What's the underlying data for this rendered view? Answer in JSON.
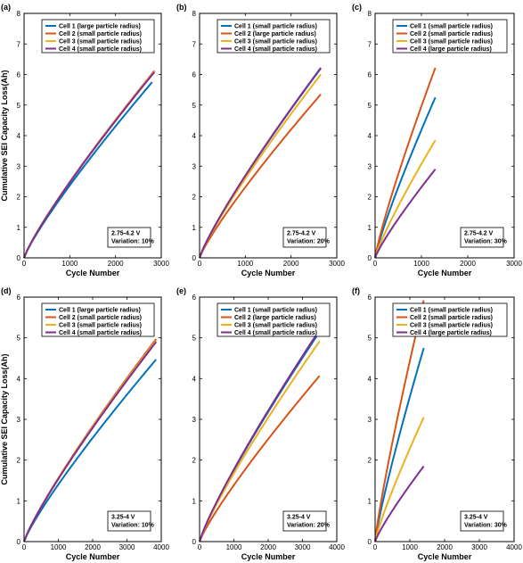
{
  "chart_data": [
    {
      "panel": "(a)",
      "type": "line",
      "xlabel": "Cycle Number",
      "ylabel": "Cumulative SEI Capacity Loss(Ah)",
      "xlim": [
        0,
        3000
      ],
      "ylim": [
        0,
        8
      ],
      "xticks": [
        0,
        1000,
        2000,
        3000
      ],
      "yticks": [
        0,
        1,
        2,
        3,
        4,
        5,
        6,
        7,
        8
      ],
      "legend_position": "top-right",
      "annotation": [
        "2.75-4.2 V",
        "Variation: 10%"
      ],
      "series": [
        {
          "name": "Cell 1 (large particle radius)",
          "color": "#0072BD",
          "x_end": 2800,
          "y_end": 5.75
        },
        {
          "name": "Cell 2 (small particle radius)",
          "color": "#D95319",
          "x_end": 2850,
          "y_end": 6.12
        },
        {
          "name": "Cell 3 (small particle radius)",
          "color": "#EDB120",
          "x_end": 2850,
          "y_end": 6.1
        },
        {
          "name": "Cell 4 (small particle radius)",
          "color": "#7E2F8E",
          "x_end": 2850,
          "y_end": 6.08
        }
      ]
    },
    {
      "panel": "(b)",
      "type": "line",
      "xlabel": "Cycle Number",
      "ylabel": "",
      "xlim": [
        0,
        3000
      ],
      "ylim": [
        0,
        8
      ],
      "xticks": [
        0,
        1000,
        2000,
        3000
      ],
      "yticks": [
        0,
        1,
        2,
        3,
        4,
        5,
        6,
        7,
        8
      ],
      "legend_position": "top-right",
      "annotation": [
        "2.75-4.2 V",
        "Variation: 20%"
      ],
      "series": [
        {
          "name": "Cell 1 (small particle radius)",
          "color": "#0072BD",
          "x_end": 2650,
          "y_end": 6.2
        },
        {
          "name": "Cell 2 (large particle radius)",
          "color": "#D95319",
          "x_end": 2650,
          "y_end": 5.35
        },
        {
          "name": "Cell 3 (small particle radius)",
          "color": "#EDB120",
          "x_end": 2650,
          "y_end": 6.0
        },
        {
          "name": "Cell 4 (small particle radius)",
          "color": "#7E2F8E",
          "x_end": 2650,
          "y_end": 6.22
        }
      ]
    },
    {
      "panel": "(c)",
      "type": "line",
      "xlabel": "Cycle Number",
      "ylabel": "",
      "xlim": [
        0,
        3000
      ],
      "ylim": [
        0,
        8
      ],
      "xticks": [
        0,
        1000,
        2000,
        3000
      ],
      "yticks": [
        0,
        1,
        2,
        3,
        4,
        5,
        6,
        7,
        8
      ],
      "legend_position": "top-right",
      "annotation": [
        "2.75-4.2 V",
        "Variation: 30%"
      ],
      "series": [
        {
          "name": "Cell 1 (small particle radius)",
          "color": "#0072BD",
          "x_end": 1300,
          "y_end": 5.25
        },
        {
          "name": "Cell 2 (small particle radius)",
          "color": "#D95319",
          "x_end": 1300,
          "y_end": 6.22
        },
        {
          "name": "Cell 3 (small particle radius)",
          "color": "#EDB120",
          "x_end": 1300,
          "y_end": 3.85
        },
        {
          "name": "Cell 4 (large particle radius)",
          "color": "#7E2F8E",
          "x_end": 1300,
          "y_end": 2.9
        }
      ]
    },
    {
      "panel": "(d)",
      "type": "line",
      "xlabel": "Cycle Number",
      "ylabel": "Cumulative SEI Capacity Loss(Ah)",
      "xlim": [
        0,
        4000
      ],
      "ylim": [
        0,
        6
      ],
      "xticks": [
        0,
        1000,
        2000,
        3000,
        4000
      ],
      "yticks": [
        0,
        1,
        2,
        3,
        4,
        5,
        6
      ],
      "legend_position": "top-right",
      "annotation": [
        "3.25-4 V",
        "Variation: 10%"
      ],
      "series": [
        {
          "name": "Cell 1 (large particle radius)",
          "color": "#0072BD",
          "x_end": 3850,
          "y_end": 4.47
        },
        {
          "name": "Cell 2 (small particle radius)",
          "color": "#D95319",
          "x_end": 3850,
          "y_end": 4.97
        },
        {
          "name": "Cell 3 (small particle radius)",
          "color": "#EDB120",
          "x_end": 3850,
          "y_end": 4.93
        },
        {
          "name": "Cell 4 (small particle radius)",
          "color": "#7E2F8E",
          "x_end": 3850,
          "y_end": 4.9
        }
      ]
    },
    {
      "panel": "(e)",
      "type": "line",
      "xlabel": "Cycle Number",
      "ylabel": "",
      "xlim": [
        0,
        4000
      ],
      "ylim": [
        0,
        6
      ],
      "xticks": [
        0,
        1000,
        2000,
        3000,
        4000
      ],
      "yticks": [
        0,
        1,
        2,
        3,
        4,
        5,
        6
      ],
      "legend_position": "top-right",
      "annotation": [
        "3.25-4 V",
        "Variation: 20%"
      ],
      "series": [
        {
          "name": "Cell 1 (small particle radius)",
          "color": "#0072BD",
          "x_end": 3500,
          "y_end": 5.15
        },
        {
          "name": "Cell 2 (large particle radius)",
          "color": "#D95319",
          "x_end": 3500,
          "y_end": 4.07
        },
        {
          "name": "Cell 3 (small particle radius)",
          "color": "#EDB120",
          "x_end": 3500,
          "y_end": 4.92
        },
        {
          "name": "Cell 4 (small particle radius)",
          "color": "#7E2F8E",
          "x_end": 3500,
          "y_end": 5.2
        }
      ]
    },
    {
      "panel": "(f)",
      "type": "line",
      "xlabel": "Cycle Number",
      "ylabel": "",
      "xlim": [
        0,
        4000
      ],
      "ylim": [
        0,
        6
      ],
      "xticks": [
        0,
        1000,
        2000,
        3000,
        4000
      ],
      "yticks": [
        0,
        1,
        2,
        3,
        4,
        5,
        6
      ],
      "legend_position": "top-right",
      "annotation": [
        "3.25-4 V",
        "Variation: 30%"
      ],
      "series": [
        {
          "name": "Cell 1 (small particle radius)",
          "color": "#0072BD",
          "x_end": 1400,
          "y_end": 4.75
        },
        {
          "name": "Cell 2 (small particle radius)",
          "color": "#D95319",
          "x_end": 1400,
          "y_end": 5.92
        },
        {
          "name": "Cell 3 (small particle radius)",
          "color": "#EDB120",
          "x_end": 1400,
          "y_end": 3.05
        },
        {
          "name": "Cell 4 (large particle radius)",
          "color": "#7E2F8E",
          "x_end": 1400,
          "y_end": 1.85
        }
      ]
    }
  ]
}
